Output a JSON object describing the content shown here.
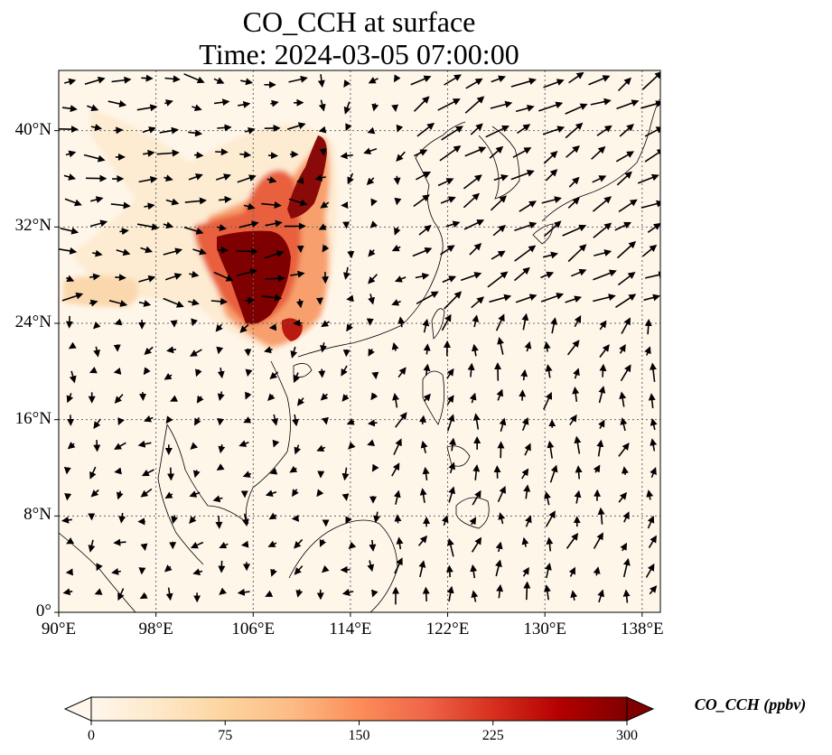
{
  "title": {
    "line1": "CO_CCH at surface",
    "line2": "Time: 2024-03-05 07:00:00"
  },
  "map": {
    "projection": "PlateCarree",
    "lon_range": [
      90,
      139.5
    ],
    "lat_range": [
      0,
      45
    ],
    "lat_ticks": [
      {
        "value": 0,
        "label": "0°"
      },
      {
        "value": 8,
        "label": "8°N"
      },
      {
        "value": 16,
        "label": "16°N"
      },
      {
        "value": 24,
        "label": "24°N"
      },
      {
        "value": 32,
        "label": "32°N"
      },
      {
        "value": 40,
        "label": "40°N"
      }
    ],
    "lon_ticks": [
      {
        "value": 90,
        "label": "90°E"
      },
      {
        "value": 98,
        "label": "98°E"
      },
      {
        "value": 106,
        "label": "106°E"
      },
      {
        "value": 114,
        "label": "114°E"
      },
      {
        "value": 122,
        "label": "122°E"
      },
      {
        "value": 130,
        "label": "130°E"
      },
      {
        "value": 138,
        "label": "138°E"
      }
    ],
    "gridlines": "dotted",
    "variable": "CO_CCH",
    "units": "ppbv"
  },
  "colorbar": {
    "label": "CO_CCH (ppbv)",
    "colormap": "OrRd",
    "colors": [
      "#fff7ec",
      "#fee8c8",
      "#fdd49e",
      "#fdbb84",
      "#fc8d59",
      "#ef6548",
      "#d7301f",
      "#b30000",
      "#7f0000"
    ],
    "min": 0,
    "max": 300,
    "extend": "both",
    "ticks": [
      {
        "value": 0,
        "label": "0"
      },
      {
        "value": 75,
        "label": "75"
      },
      {
        "value": 150,
        "label": "150"
      },
      {
        "value": 225,
        "label": "225"
      },
      {
        "value": 300,
        "label": "300"
      }
    ]
  }
}
